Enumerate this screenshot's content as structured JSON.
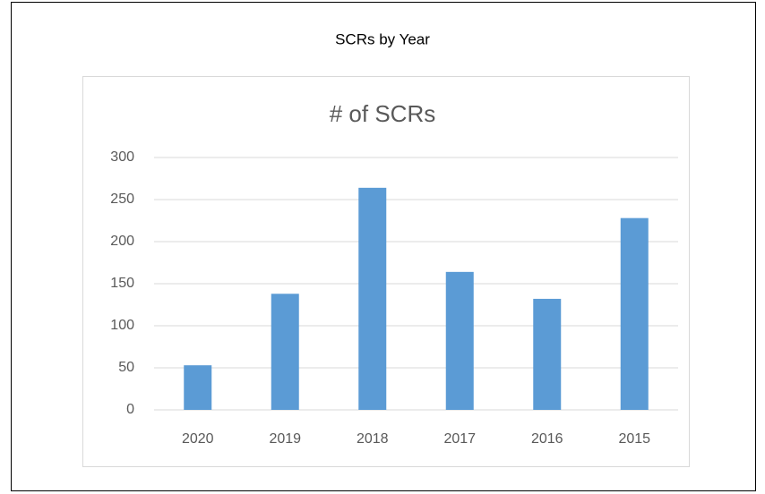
{
  "page_title": "SCRs by Year",
  "chart_data": {
    "type": "bar",
    "title": "# of SCRs",
    "categories": [
      "2020",
      "2019",
      "2018",
      "2017",
      "2016",
      "2015"
    ],
    "values": [
      53,
      138,
      264,
      164,
      132,
      228
    ],
    "color": "#5b9bd5",
    "ylim": [
      0,
      300
    ],
    "yticks": [
      0,
      50,
      100,
      150,
      200,
      250,
      300
    ],
    "grid": true
  }
}
